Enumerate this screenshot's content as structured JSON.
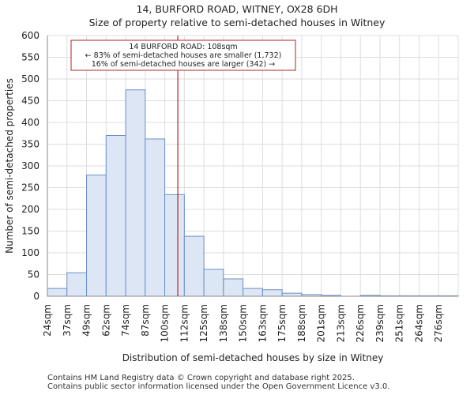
{
  "chart_data": {
    "type": "bar",
    "title": "14, BURFORD ROAD, WITNEY, OX28 6DH",
    "subtitle": "Size of property relative to semi-detached houses in Witney",
    "xlabel": "Distribution of semi-detached houses by size in Witney",
    "ylabel": "Number of semi-detached properties",
    "categories": [
      "24sqm",
      "37sqm",
      "49sqm",
      "62sqm",
      "74sqm",
      "87sqm",
      "100sqm",
      "112sqm",
      "125sqm",
      "138sqm",
      "150sqm",
      "163sqm",
      "175sqm",
      "188sqm",
      "201sqm",
      "213sqm",
      "226sqm",
      "239sqm",
      "251sqm",
      "264sqm",
      "276sqm"
    ],
    "values": [
      18,
      54,
      279,
      370,
      475,
      362,
      234,
      138,
      62,
      40,
      18,
      15,
      7,
      4,
      2,
      0,
      2,
      1,
      1,
      1,
      1
    ],
    "ylim": [
      0,
      600
    ],
    "yticks": [
      0,
      50,
      100,
      150,
      200,
      250,
      300,
      350,
      400,
      450,
      500,
      550,
      600
    ],
    "grid": true,
    "bar_color": "#dce6f5",
    "bar_edge_color": "#6a8fc8",
    "marker": {
      "value_sqm": 108,
      "color": "#b22222",
      "annotation": [
        "14 BURFORD ROAD: 108sqm",
        "← 83% of semi-detached houses are smaller (1,732)",
        "16% of semi-detached houses are larger (342) →"
      ]
    }
  },
  "footer": {
    "line1": "Contains HM Land Registry data © Crown copyright and database right 2025.",
    "line2": "Contains public sector information licensed under the Open Government Licence v3.0."
  }
}
